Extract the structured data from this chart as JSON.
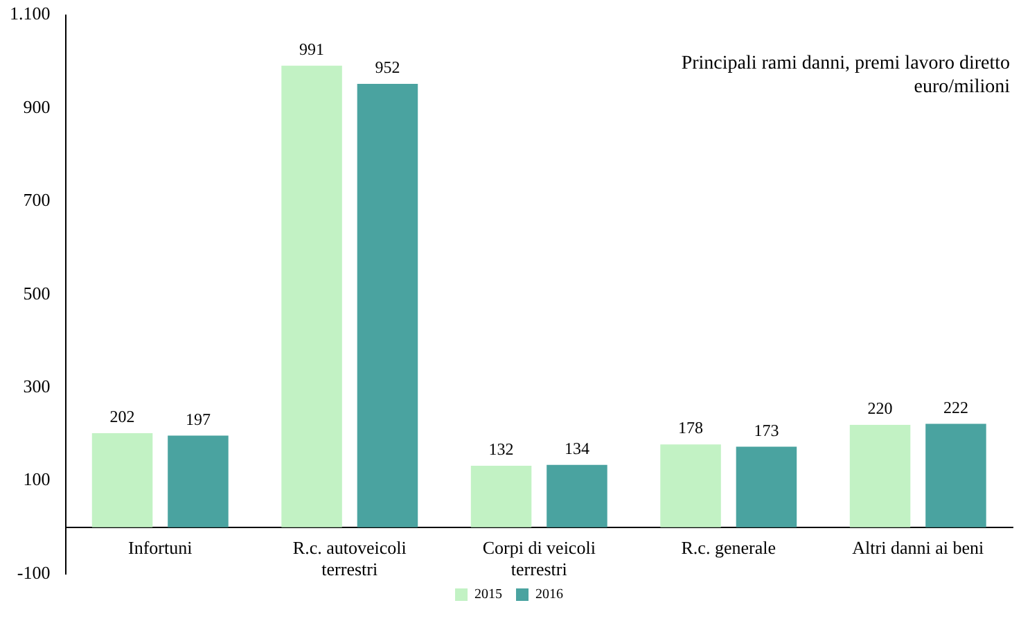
{
  "chart_data": {
    "type": "bar",
    "annotations": [
      "Principali rami danni, premi lavoro diretto",
      "euro/milioni"
    ],
    "categories": [
      "Infortuni",
      "R.c. autoveicoli terrestri",
      "Corpi di veicoli terrestri",
      "R.c. generale",
      "Altri danni ai beni"
    ],
    "series": [
      {
        "name": "2015",
        "color": "#c2f2c4",
        "values": [
          202,
          991,
          132,
          178,
          220
        ]
      },
      {
        "name": "2016",
        "color": "#4aa3a0",
        "values": [
          197,
          952,
          134,
          173,
          222
        ]
      }
    ],
    "ylim": [
      -100,
      1100
    ],
    "yticks": [
      -100,
      100,
      300,
      500,
      700,
      900,
      {
        "value": 1100,
        "label": "1.100"
      }
    ],
    "grid": false,
    "legend": "bottom",
    "data_labels": true
  }
}
